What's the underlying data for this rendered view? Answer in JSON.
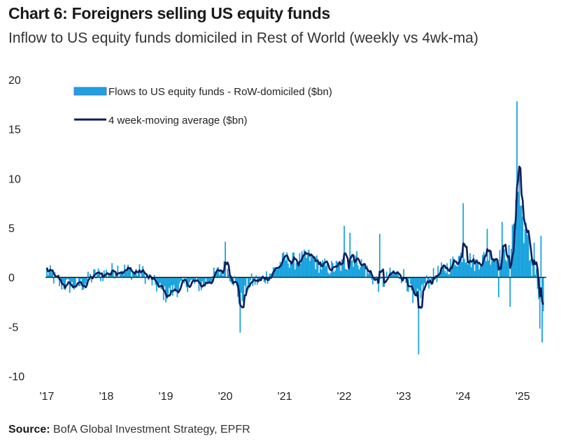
{
  "chart_data": {
    "type": "bar+line",
    "title": "Chart 6: Foreigners selling US equity funds",
    "subtitle": "Inflow to US equity funds domiciled in Rest of World (weekly vs 4wk-ma)",
    "source_label": "Source:",
    "source_text": "BofA Global Investment Strategy, EPFR",
    "xlabel": "",
    "ylabel": "",
    "ylim": [
      -10,
      20
    ],
    "xlim": [
      2017.0,
      2025.35
    ],
    "yticks": [
      "20",
      "15",
      "10",
      "5",
      "0",
      "-5",
      "-10"
    ],
    "ytick_values": [
      20,
      15,
      10,
      5,
      0,
      -5,
      -10
    ],
    "xticks": [
      "'17",
      "'18",
      "'19",
      "'20",
      "'21",
      "'22",
      "'23",
      "'24",
      "'25"
    ],
    "xtick_values": [
      2017,
      2018,
      2019,
      2020,
      2021,
      2022,
      2023,
      2024,
      2025
    ],
    "series": [
      {
        "name": "Flows to US equity funds - RoW-domiciled ($bn)",
        "kind": "bar",
        "color": "#1aa3df",
        "anchors": [
          [
            2017.0,
            0.7
          ],
          [
            2017.2,
            -0.6
          ],
          [
            2017.4,
            -0.9
          ],
          [
            2017.6,
            -0.7
          ],
          [
            2017.8,
            0.2
          ],
          [
            2018.0,
            0.4
          ],
          [
            2018.2,
            0.9
          ],
          [
            2018.4,
            0.6
          ],
          [
            2018.6,
            0.5
          ],
          [
            2018.8,
            -0.6
          ],
          [
            2019.0,
            -1.8
          ],
          [
            2019.2,
            -1.1
          ],
          [
            2019.4,
            -0.5
          ],
          [
            2019.6,
            -0.8
          ],
          [
            2019.8,
            0.1
          ],
          [
            2020.0,
            1.0
          ],
          [
            2020.15,
            -0.3
          ],
          [
            2020.25,
            -2.6
          ],
          [
            2020.4,
            -0.5
          ],
          [
            2020.6,
            -0.3
          ],
          [
            2020.8,
            0.6
          ],
          [
            2021.0,
            1.9
          ],
          [
            2021.2,
            1.6
          ],
          [
            2021.4,
            2.1
          ],
          [
            2021.6,
            1.2
          ],
          [
            2021.8,
            0.9
          ],
          [
            2022.0,
            1.3
          ],
          [
            2022.2,
            2.0
          ],
          [
            2022.4,
            0.5
          ],
          [
            2022.6,
            -0.8
          ],
          [
            2022.8,
            0.3
          ],
          [
            2023.0,
            0.2
          ],
          [
            2023.2,
            -2.3
          ],
          [
            2023.4,
            -0.4
          ],
          [
            2023.6,
            0.5
          ],
          [
            2023.8,
            1.3
          ],
          [
            2024.0,
            2.4
          ],
          [
            2024.2,
            1.4
          ],
          [
            2024.4,
            2.2
          ],
          [
            2024.6,
            2.0
          ],
          [
            2024.8,
            2.6
          ],
          [
            2024.9,
            9.5
          ],
          [
            2025.0,
            6.0
          ],
          [
            2025.1,
            2.5
          ],
          [
            2025.2,
            0.8
          ],
          [
            2025.3,
            -3.0
          ]
        ],
        "spikes": [
          [
            2020.25,
            -5.6
          ],
          [
            2020.0,
            3.6
          ],
          [
            2022.0,
            5.2
          ],
          [
            2022.1,
            4.5
          ],
          [
            2022.6,
            4.4
          ],
          [
            2023.25,
            -7.8
          ],
          [
            2023.15,
            -2.6
          ],
          [
            2024.0,
            7.5
          ],
          [
            2024.4,
            4.9
          ],
          [
            2024.65,
            5.6
          ],
          [
            2024.6,
            -2.0
          ],
          [
            2024.78,
            -3.0
          ],
          [
            2024.9,
            17.8
          ],
          [
            2024.95,
            10.5
          ],
          [
            2025.2,
            3.5
          ],
          [
            2025.28,
            -5.2
          ],
          [
            2025.33,
            -6.6
          ],
          [
            2025.3,
            4.2
          ]
        ]
      },
      {
        "name": "4 week-moving average ($bn)",
        "kind": "line",
        "color": "#0c1f5c"
      }
    ]
  },
  "legend_position": "top-left"
}
